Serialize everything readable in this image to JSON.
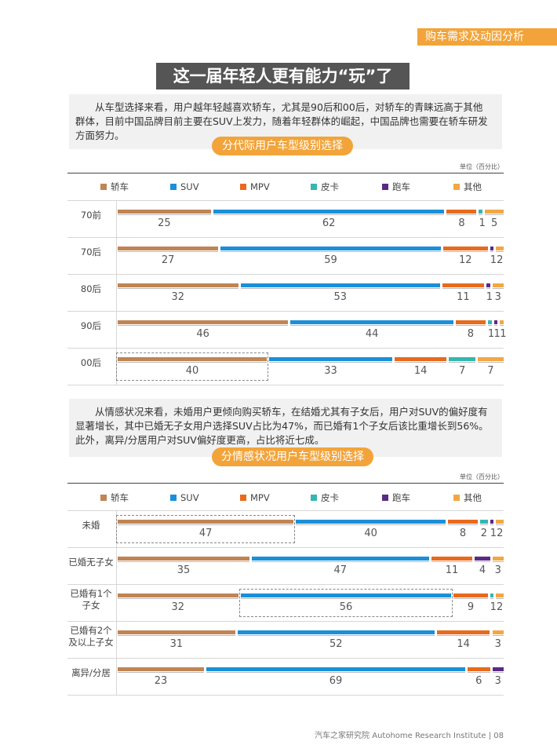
{
  "header": {
    "section_tag": "购车需求及动因分析"
  },
  "title": "这一届年轻人更有能力“玩”了",
  "intro_1": "从车型选择来看，用户越年轻越喜欢轿车，尤其是90后和00后，对轿车的青睐远高于其他群体，目前中国品牌目前主要在SUV上发力，随着年轻群体的崛起，中国品牌也需要在轿车研发方面努力。",
  "intro_2": "从情感状况来看，未婚用户更倾向购买轿车，在结婚尤其有子女后，用户对SUV的偏好度有显著增长，其中已婚无子女用户选择SUV占比为47%，而已婚有1个子女后该比重增长到56%。此外，离异/分居用户对SUV偏好度更高，占比将近七成。",
  "colors": {
    "sedan": "#c08553",
    "suv": "#1a90d8",
    "mpv": "#e86a1c",
    "pickup": "#34b7b0",
    "sports": "#5b2a86",
    "other": "#f2a743",
    "accent": "#f2a43a",
    "title_bg": "#555555"
  },
  "chart_data": [
    {
      "type": "bar",
      "stacked": true,
      "title": "分代际用户车型级别选择",
      "unit": "单位（百分比）",
      "legend": [
        "轿车",
        "SUV",
        "MPV",
        "皮卡",
        "跑车",
        "其他"
      ],
      "categories": [
        "70前",
        "70后",
        "80后",
        "90后",
        "00后"
      ],
      "series": [
        {
          "name": "轿车",
          "values": [
            25,
            27,
            32,
            46,
            40
          ]
        },
        {
          "name": "SUV",
          "values": [
            62,
            59,
            53,
            44,
            33
          ]
        },
        {
          "name": "MPV",
          "values": [
            8,
            12,
            11,
            8,
            14
          ]
        },
        {
          "name": "皮卡",
          "values": [
            1,
            0,
            0,
            1,
            7
          ]
        },
        {
          "name": "跑车",
          "values": [
            0,
            1,
            1,
            1,
            0
          ]
        },
        {
          "name": "其他",
          "values": [
            5,
            2,
            3,
            1,
            7
          ]
        }
      ],
      "highlight": [
        {
          "row": 4,
          "from": 0,
          "to": 0
        }
      ]
    },
    {
      "type": "bar",
      "stacked": true,
      "title": "分情感状况用户车型级别选择",
      "unit": "单位（百分比）",
      "legend": [
        "轿车",
        "SUV",
        "MPV",
        "皮卡",
        "跑车",
        "其他"
      ],
      "categories": [
        "未婚",
        "已婚无子女",
        "已婚有1个子女",
        "已婚有2个及以上子女",
        "离异/分居"
      ],
      "category_lines": [
        [
          "未婚"
        ],
        [
          "已婚无子女"
        ],
        [
          "已婚有1个",
          "子女"
        ],
        [
          "已婚有2个",
          "及以上子女"
        ],
        [
          "离异/分居"
        ]
      ],
      "series": [
        {
          "name": "轿车",
          "values": [
            47,
            35,
            32,
            31,
            23
          ]
        },
        {
          "name": "SUV",
          "values": [
            40,
            47,
            56,
            52,
            69
          ]
        },
        {
          "name": "MPV",
          "values": [
            8,
            11,
            9,
            14,
            6
          ]
        },
        {
          "name": "皮卡",
          "values": [
            2,
            0,
            1,
            0,
            0
          ]
        },
        {
          "name": "跑车",
          "values": [
            1,
            4,
            0,
            0,
            3
          ]
        },
        {
          "name": "其他",
          "values": [
            2,
            3,
            2,
            3,
            0
          ]
        }
      ],
      "highlight": [
        {
          "row": 0,
          "from": 0,
          "to": 0
        },
        {
          "row": 2,
          "from": 1,
          "to": 1
        }
      ]
    }
  ],
  "footer": {
    "text": "汽车之家研究院  Autohome Research Institute  |  08"
  }
}
